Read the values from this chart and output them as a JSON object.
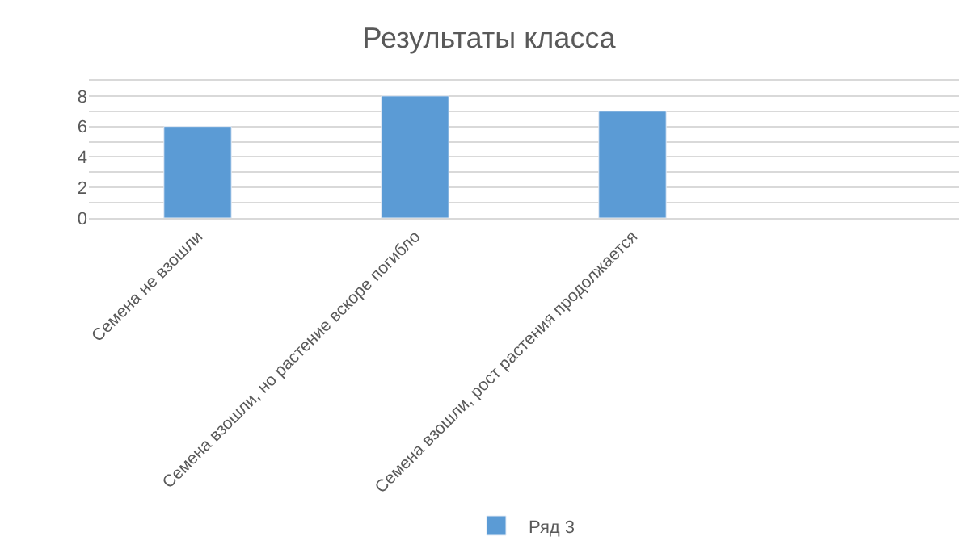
{
  "chart_data": {
    "type": "bar",
    "title": "Результаты класса",
    "categories": [
      "Семена не взошли",
      "Семена взошли, но растение вскоре погибло",
      "Семена взошли, рост растения продолжается",
      null
    ],
    "series": [
      {
        "name": "Ряд 3",
        "color": "#5b9bd5",
        "values": [
          6,
          8,
          7,
          null
        ]
      }
    ],
    "ylim": [
      0,
      9
    ],
    "yticks": [
      0,
      {
        "value": 1,
        "label": null
      },
      2,
      {
        "value": 3,
        "label": null
      },
      4,
      {
        "value": 5,
        "label": null
      },
      6,
      {
        "value": 7,
        "label": null
      },
      8,
      {
        "value": 9,
        "label": null
      }
    ],
    "grid": "y",
    "legend": "bottom"
  }
}
